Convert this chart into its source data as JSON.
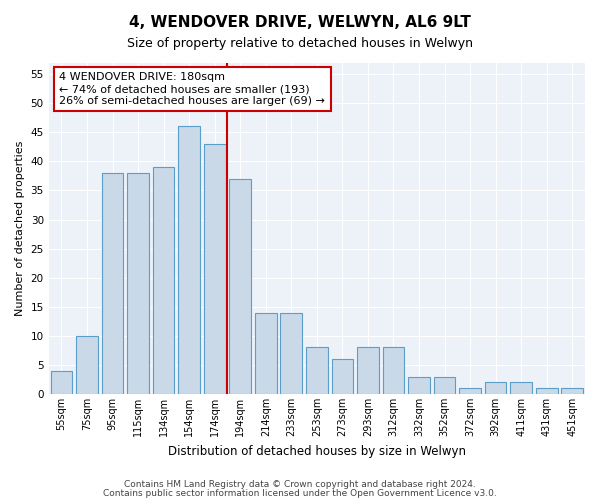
{
  "title1": "4, WENDOVER DRIVE, WELWYN, AL6 9LT",
  "title2": "Size of property relative to detached houses in Welwyn",
  "xlabel": "Distribution of detached houses by size in Welwyn",
  "ylabel": "Number of detached properties",
  "categories": [
    "55sqm",
    "75sqm",
    "95sqm",
    "115sqm",
    "134sqm",
    "154sqm",
    "174sqm",
    "194sqm",
    "214sqm",
    "233sqm",
    "253sqm",
    "273sqm",
    "293sqm",
    "312sqm",
    "332sqm",
    "352sqm",
    "372sqm",
    "392sqm",
    "411sqm",
    "431sqm",
    "451sqm"
  ],
  "values": [
    4,
    10,
    38,
    38,
    39,
    46,
    43,
    37,
    14,
    14,
    8,
    6,
    8,
    8,
    3,
    3,
    1,
    2,
    2,
    1,
    1
  ],
  "bar_color": "#c9d9e8",
  "bar_edge_color": "#5b9ec9",
  "vline_color": "#cc0000",
  "annotation_text": "4 WENDOVER DRIVE: 180sqm\n← 74% of detached houses are smaller (193)\n26% of semi-detached houses are larger (69) →",
  "annotation_box_color": "#cc0000",
  "ylim": [
    0,
    57
  ],
  "yticks": [
    0,
    5,
    10,
    15,
    20,
    25,
    30,
    35,
    40,
    45,
    50,
    55
  ],
  "background_color": "#edf1f8",
  "grid_color": "#ffffff",
  "footer1": "Contains HM Land Registry data © Crown copyright and database right 2024.",
  "footer2": "Contains public sector information licensed under the Open Government Licence v3.0.",
  "title1_fontsize": 11,
  "title2_fontsize": 9,
  "ylabel_fontsize": 8,
  "xlabel_fontsize": 8.5,
  "tick_fontsize": 7.5,
  "xtick_fontsize": 7,
  "annotation_fontsize": 8,
  "footer_fontsize": 6.5
}
